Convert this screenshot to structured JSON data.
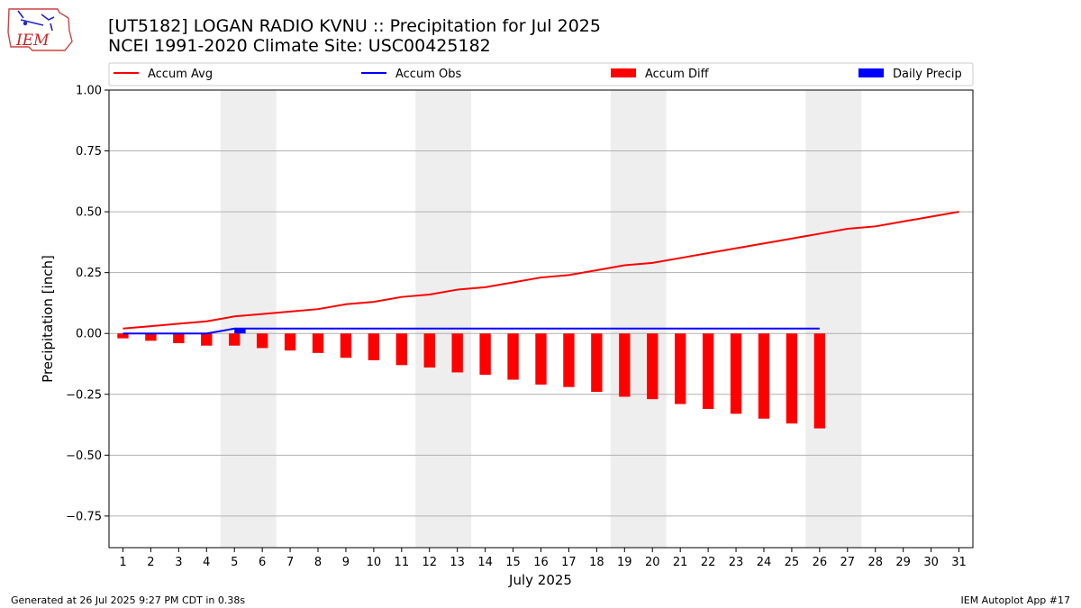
{
  "header": {
    "title": "[UT5182] LOGAN RADIO KVNU :: Precipitation for Jul 2025",
    "subtitle": "NCEI 1991-2020 Climate Site: USC00425182",
    "logo_text": "IEM"
  },
  "footer": {
    "generated": "Generated at 26 Jul 2025 9:27 PM CDT in 0.38s",
    "app": "IEM Autoplot App #17"
  },
  "colors": {
    "accum_avg": "#ff0000",
    "accum_obs": "#0000ff",
    "accum_diff": "#ff0000",
    "daily_precip": "#0000ff",
    "weekend_shade": "#eeeeee",
    "grid": "#b0b0b0"
  },
  "chart_data": {
    "type": "bar",
    "xlabel": "July 2025",
    "ylabel": "Precipitation [inch]",
    "ylim": [
      -0.88,
      1.0
    ],
    "xlim": [
      0.5,
      31.5
    ],
    "yticks": [
      -0.75,
      -0.5,
      -0.25,
      0.0,
      0.25,
      0.5,
      0.75,
      1.0
    ],
    "ytick_labels": [
      "−0.75",
      "−0.50",
      "−0.25",
      "0.00",
      "0.25",
      "0.50",
      "0.75",
      "1.00"
    ],
    "x": [
      1,
      2,
      3,
      4,
      5,
      6,
      7,
      8,
      9,
      10,
      11,
      12,
      13,
      14,
      15,
      16,
      17,
      18,
      19,
      20,
      21,
      22,
      23,
      24,
      25,
      26,
      27,
      28,
      29,
      30,
      31
    ],
    "x_tick_labels": [
      "1",
      "2",
      "3",
      "4",
      "5",
      "6",
      "7",
      "8",
      "9",
      "10",
      "11",
      "12",
      "13",
      "14",
      "15",
      "16",
      "17",
      "18",
      "19",
      "20",
      "21",
      "22",
      "23",
      "24",
      "25",
      "26",
      "27",
      "28",
      "29",
      "30",
      "31"
    ],
    "grid": "horizontal",
    "legend_placement": "top",
    "weekend_spans": [
      [
        4.5,
        6.5
      ],
      [
        11.5,
        13.5
      ],
      [
        18.5,
        20.5
      ],
      [
        25.5,
        27.5
      ]
    ],
    "series": [
      {
        "name": "Accum Avg",
        "kind": "line",
        "x": [
          1,
          2,
          3,
          4,
          5,
          6,
          7,
          8,
          9,
          10,
          11,
          12,
          13,
          14,
          15,
          16,
          17,
          18,
          19,
          20,
          21,
          22,
          23,
          24,
          25,
          26,
          27,
          28,
          29,
          30,
          31
        ],
        "values": [
          0.02,
          0.03,
          0.04,
          0.05,
          0.07,
          0.08,
          0.09,
          0.1,
          0.12,
          0.13,
          0.15,
          0.16,
          0.18,
          0.19,
          0.21,
          0.23,
          0.24,
          0.26,
          0.28,
          0.29,
          0.31,
          0.33,
          0.35,
          0.37,
          0.39,
          0.41,
          0.43,
          0.44,
          0.46,
          0.48,
          0.5
        ]
      },
      {
        "name": "Accum Obs",
        "kind": "line",
        "x": [
          1,
          2,
          3,
          4,
          5,
          6,
          7,
          8,
          9,
          10,
          11,
          12,
          13,
          14,
          15,
          16,
          17,
          18,
          19,
          20,
          21,
          22,
          23,
          24,
          25,
          26
        ],
        "values": [
          0,
          0,
          0,
          0,
          0.02,
          0.02,
          0.02,
          0.02,
          0.02,
          0.02,
          0.02,
          0.02,
          0.02,
          0.02,
          0.02,
          0.02,
          0.02,
          0.02,
          0.02,
          0.02,
          0.02,
          0.02,
          0.02,
          0.02,
          0.02,
          0.02
        ]
      },
      {
        "name": "Accum Diff",
        "kind": "bar",
        "x": [
          1,
          2,
          3,
          4,
          5,
          6,
          7,
          8,
          9,
          10,
          11,
          12,
          13,
          14,
          15,
          16,
          17,
          18,
          19,
          20,
          21,
          22,
          23,
          24,
          25,
          26
        ],
        "values": [
          -0.02,
          -0.03,
          -0.04,
          -0.05,
          -0.05,
          -0.06,
          -0.07,
          -0.08,
          -0.1,
          -0.11,
          -0.13,
          -0.14,
          -0.16,
          -0.17,
          -0.19,
          -0.21,
          -0.22,
          -0.24,
          -0.26,
          -0.27,
          -0.29,
          -0.31,
          -0.33,
          -0.35,
          -0.37,
          -0.39
        ]
      },
      {
        "name": "Daily Precip",
        "kind": "bar",
        "x": [
          5
        ],
        "values": [
          0.02
        ]
      }
    ]
  }
}
